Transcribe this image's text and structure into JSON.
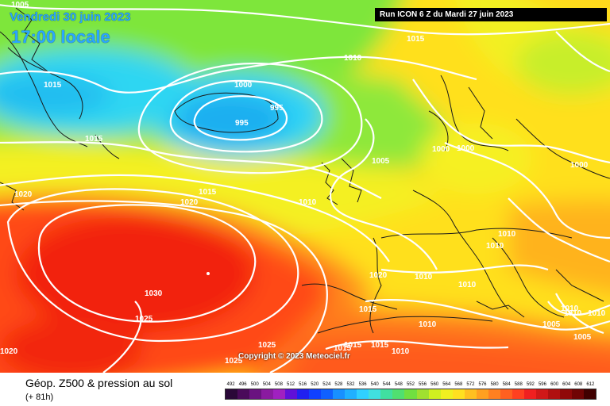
{
  "header": {
    "date": "Vendredi 30 juin 2023",
    "time": "17:00 locale",
    "run": "Run ICON 6 Z du Mardi 27 juin 2023"
  },
  "map": {
    "copyright": "Copyright © 2023 Meteociel.fr",
    "isobar_labels": [
      "1005",
      "1015",
      "1015",
      "1020",
      "1010",
      "1015",
      "1000",
      "995",
      "995",
      "1010",
      "1005",
      "1000",
      "1000",
      "1000",
      "1015",
      "1020",
      "1010",
      "1010",
      "1030",
      "1025",
      "1020",
      "1015",
      "1010",
      "1010",
      "1025",
      "1025",
      "1015",
      "1015",
      "1015",
      "1010",
      "1010",
      "1010",
      "1005",
      "1010",
      "1010",
      "1005",
      "1020"
    ]
  },
  "legend": {
    "title": "Géop. Z500 & pression au sol",
    "forecast": "(+ 81h)",
    "scale_values": [
      "492",
      "496",
      "500",
      "504",
      "508",
      "512",
      "516",
      "520",
      "524",
      "528",
      "532",
      "536",
      "540",
      "544",
      "548",
      "552",
      "556",
      "560",
      "564",
      "568",
      "572",
      "576",
      "580",
      "584",
      "588",
      "592",
      "596",
      "600",
      "604",
      "608",
      "612"
    ],
    "scale_colors": [
      "#2a0838",
      "#4a0a5a",
      "#6a1280",
      "#8a1aa0",
      "#a020c0",
      "#6010d8",
      "#2020f0",
      "#1040ff",
      "#1060ff",
      "#1890ff",
      "#20b0ff",
      "#30d0ff",
      "#40e0e0",
      "#40e0a0",
      "#50e070",
      "#70e040",
      "#a0e030",
      "#d0f020",
      "#f0f020",
      "#ffe020",
      "#ffc020",
      "#ffa020",
      "#ff8020",
      "#ff6020",
      "#ff4020",
      "#f02020",
      "#d01818",
      "#b01010",
      "#900808",
      "#700404",
      "#400000"
    ]
  }
}
